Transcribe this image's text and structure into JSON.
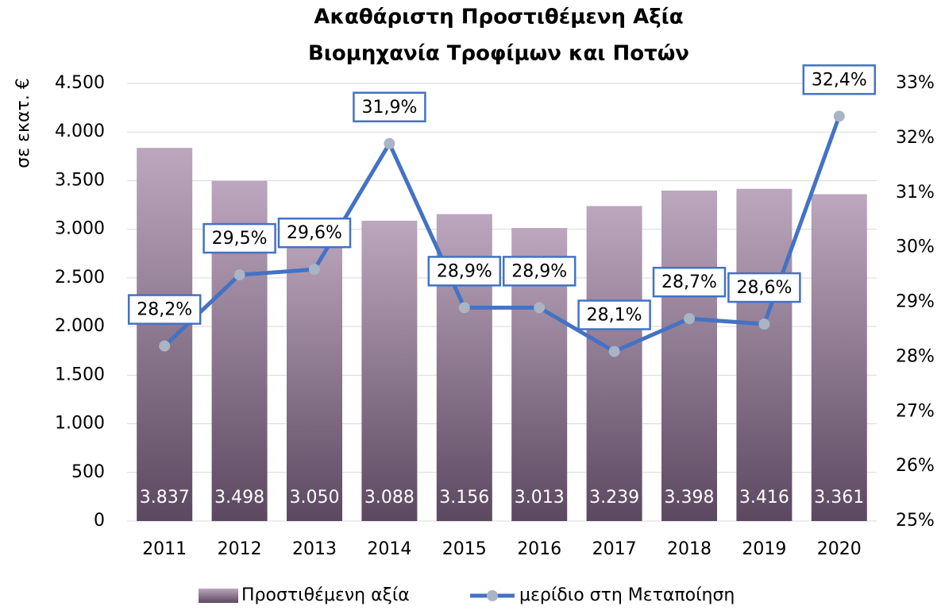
{
  "chart_data": {
    "type": "bar",
    "title": "Ακαθάριστη Προστιθέμενη Αξία",
    "subtitle": "Βιομηχανία Τροφίμων και Ποτών",
    "y_label": "σε εκατ. €",
    "categories": [
      "2011",
      "2012",
      "2013",
      "2014",
      "2015",
      "2016",
      "2017",
      "2018",
      "2019",
      "2020"
    ],
    "series": [
      {
        "name": "Προστιθέμενη αξία",
        "type": "bar",
        "gradient": [
          "#bca7be",
          "#5c4860"
        ],
        "values": [
          3837,
          3498,
          3050,
          3088,
          3156,
          3013,
          3239,
          3398,
          3416,
          3361
        ],
        "value_labels": [
          "3.837",
          "3.498",
          "3.050",
          "3.088",
          "3.156",
          "3.013",
          "3.239",
          "3.398",
          "3.416",
          "3.361"
        ]
      },
      {
        "name": "μερίδιο στη Μεταποίηση",
        "type": "line",
        "axis": "y2",
        "color": "#4472c4",
        "marker_color": "#a9b4c4",
        "values": [
          28.2,
          29.5,
          29.6,
          31.9,
          28.9,
          28.9,
          28.1,
          28.7,
          28.6,
          32.4
        ],
        "value_labels": [
          "28,2%",
          "29,5%",
          "29,6%",
          "31,9%",
          "28,9%",
          "28,9%",
          "28,1%",
          "28,7%",
          "28,6%",
          "32,4%"
        ]
      }
    ],
    "ylim": [
      0,
      4500
    ],
    "yticks": [
      0,
      500,
      {
        "value": 1000,
        "label": "1.000"
      },
      {
        "value": 1500,
        "label": "1.500"
      },
      {
        "value": 2000,
        "label": "2.000"
      },
      {
        "value": 2500,
        "label": "2.500"
      },
      {
        "value": 3000,
        "label": "3.000"
      },
      {
        "value": 3500,
        "label": "3.500"
      },
      {
        "value": 4000,
        "label": "4.000"
      },
      {
        "value": 4500,
        "label": "4.500"
      }
    ],
    "y2lim": [
      25,
      33
    ],
    "y2ticks": [
      {
        "value": 25,
        "label": "25%"
      },
      {
        "value": 26,
        "label": "26%"
      },
      {
        "value": 27,
        "label": "27%"
      },
      {
        "value": 28,
        "label": "28%"
      },
      {
        "value": 29,
        "label": "29%"
      },
      {
        "value": 30,
        "label": "30%"
      },
      {
        "value": 31,
        "label": "31%"
      },
      {
        "value": 32,
        "label": "32%"
      },
      {
        "value": 33,
        "label": "33%"
      }
    ],
    "grid": true,
    "legend": "bottom"
  }
}
